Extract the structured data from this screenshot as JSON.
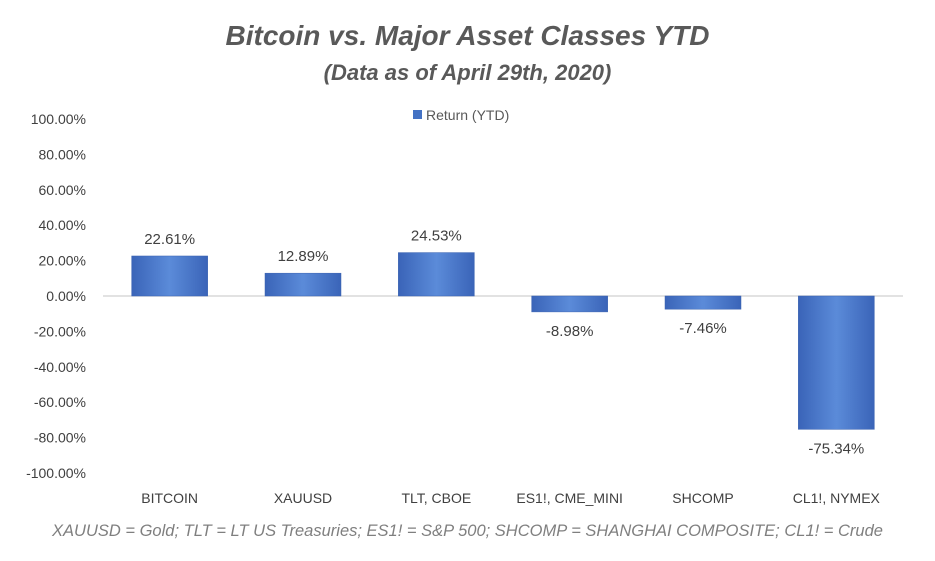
{
  "chart_data": {
    "type": "bar",
    "title": "Bitcoin vs. Major Asset Classes YTD",
    "subtitle": "(Data as of April 29th, 2020)",
    "categories": [
      "BITCOIN",
      "XAUUSD",
      "TLT, CBOE",
      "ES1!, CME_MINI",
      "SHCOMP",
      "CL1!, NYMEX"
    ],
    "series": [
      {
        "name": "Return (YTD)",
        "values": [
          22.61,
          12.89,
          24.53,
          -8.98,
          -7.46,
          -75.34
        ],
        "labels": [
          "22.61%",
          "12.89%",
          "24.53%",
          "-8.98%",
          "-7.46%",
          "-75.34%"
        ]
      }
    ],
    "ylim": [
      -100,
      100
    ],
    "yticks": [
      100,
      80,
      60,
      40,
      20,
      0,
      -20,
      -40,
      -60,
      -80,
      -100
    ],
    "ytick_labels": [
      "100.00%",
      "80.00%",
      "60.00%",
      "40.00%",
      "20.00%",
      "0.00%",
      "-20.00%",
      "-40.00%",
      "-60.00%",
      "-80.00%",
      "-100.00%"
    ],
    "legend": "top-center",
    "grid": false,
    "footnote": "XAUUSD = Gold; TLT = LT US Treasuries; ES1! = S&P 500; SHCOMP = SHANGHAI COMPOSITE; CL1! = Crude",
    "colors": {
      "bar": "#4472c4",
      "bar_light": "#5b8bd9",
      "zero_line": "#d9d9d9"
    }
  }
}
